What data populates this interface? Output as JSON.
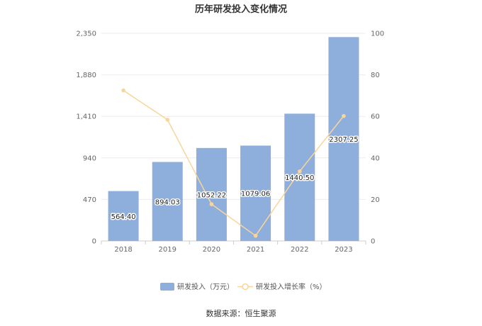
{
  "chart_data": {
    "type": "bar+line",
    "title": "历年研发投入变化情况",
    "categories": [
      "2018",
      "2019",
      "2020",
      "2021",
      "2022",
      "2023"
    ],
    "series": [
      {
        "name": "研发投入（万元）",
        "type": "bar",
        "axis": "left",
        "values": [
          564.4,
          894.03,
          1052.22,
          1079.06,
          1440.5,
          2307.25
        ],
        "labels": [
          "564.40",
          "894.03",
          "1052.22",
          "1079.06",
          "1440.50",
          "2307.25"
        ],
        "color": "#8eaedb"
      },
      {
        "name": "研发投入增长率（%）",
        "type": "line",
        "axis": "right",
        "values": [
          72.5,
          58.4,
          17.7,
          2.5,
          33.5,
          60.2
        ],
        "color": "#f9d59b"
      }
    ],
    "y_left": {
      "ticks": [
        "0",
        "470",
        "940",
        "1,410",
        "1,880",
        "2,350"
      ],
      "range": [
        0,
        2350
      ]
    },
    "y_right": {
      "ticks": [
        "0",
        "20",
        "40",
        "60",
        "80",
        "100"
      ],
      "range": [
        0,
        100
      ]
    },
    "grid": true,
    "legend_position": "bottom"
  },
  "source_text": "数据来源：恒生聚源"
}
